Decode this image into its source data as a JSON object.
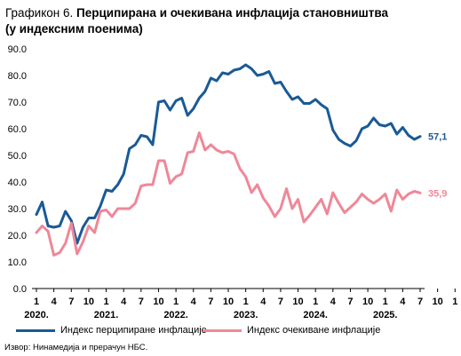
{
  "header": {
    "title_prefix": "Графикон 6.",
    "title_main": "Перципирана и очекивана инфлација становништва",
    "title_line2": "(у индексним поенима)"
  },
  "source": "Извор: Нинамедија и прерачун НБС.",
  "chart_data": {
    "type": "line",
    "ylim": [
      0,
      90
    ],
    "yticks": [
      "0.0",
      "10.0",
      "20.0",
      "30.0",
      "40.0",
      "50.0",
      "60.0",
      "70.0",
      "80.0",
      "90.0"
    ],
    "x_tick_labels": [
      "1",
      "4",
      "7",
      "10",
      "1",
      "4",
      "7",
      "10",
      "1",
      "4",
      "7",
      "10",
      "1",
      "4",
      "7",
      "10",
      "1",
      "4",
      "7",
      "10",
      "1",
      "4",
      "7",
      "10",
      "1",
      "4",
      "7"
    ],
    "year_labels": [
      "2020.",
      "2021.",
      "2022.",
      "2023.",
      "2024.",
      "2025."
    ],
    "grid": false,
    "legend_position": "bottom",
    "series": [
      {
        "name": "Индекс перципиране инфлације",
        "color": "#1a5a96",
        "end_label": "57,1",
        "values": [
          27.8,
          32.5,
          23.5,
          23,
          23.5,
          29,
          25.5,
          17,
          23,
          26.5,
          26.5,
          31,
          37,
          36.5,
          39,
          43,
          52.5,
          54,
          57.5,
          57,
          54,
          70,
          70.5,
          67,
          70.5,
          71.5,
          65,
          67.5,
          71.5,
          74,
          79,
          78,
          81,
          80.5,
          82,
          82.5,
          84,
          82.5,
          80,
          80.5,
          81.5,
          77,
          77.5,
          74,
          71,
          72,
          69.5,
          69.5,
          71,
          69,
          67.5,
          59.5,
          56,
          54.5,
          53.5,
          55.5,
          60,
          61,
          64,
          61.5,
          61,
          62,
          58,
          60.5,
          57.5,
          56,
          57.1
        ]
      },
      {
        "name": "Индекс очекиване инфлације",
        "color": "#ee8898",
        "end_label": "35,9",
        "values": [
          21,
          23.5,
          21.5,
          12.5,
          13.5,
          17,
          24.5,
          13,
          17.5,
          23.5,
          21,
          29,
          29.5,
          27,
          30,
          30,
          30,
          32,
          38.5,
          39,
          39,
          48,
          48,
          39.5,
          42,
          43,
          51,
          51.5,
          58.5,
          52,
          54,
          52,
          51,
          51.5,
          50.5,
          45,
          42,
          36,
          39,
          34,
          31,
          27,
          30,
          37.5,
          30,
          33.5,
          25,
          27.5,
          30.5,
          33.5,
          28,
          36,
          32,
          28.5,
          30.5,
          32.5,
          35.5,
          33.5,
          32,
          33.5,
          35.5,
          29,
          37,
          33.5,
          35.5,
          36.5,
          35.9
        ]
      }
    ]
  }
}
